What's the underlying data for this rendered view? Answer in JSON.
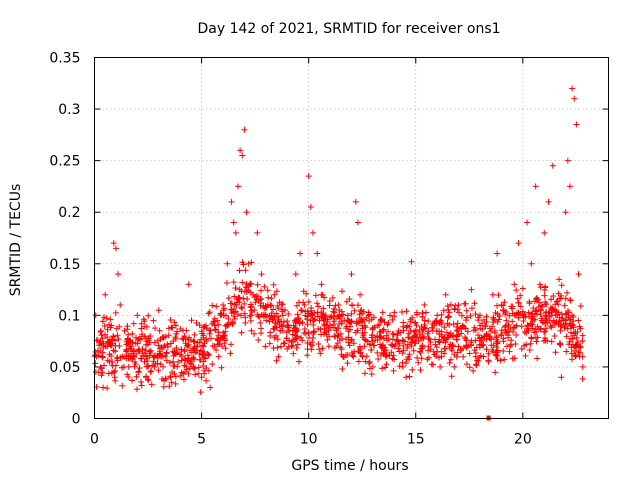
{
  "chart_data": {
    "type": "scatter",
    "title": "Day 142 of 2021, SRMTID for receiver ons1",
    "xlabel": "GPS time / hours",
    "ylabel": "SRMTID / TECUs",
    "xlim": [
      0,
      24
    ],
    "ylim": [
      0,
      0.35
    ],
    "xticks": [
      0,
      5,
      10,
      15,
      20
    ],
    "xtick_labels": [
      "0",
      "5",
      "10",
      "15",
      "20"
    ],
    "yticks": [
      0,
      0.05,
      0.1,
      0.15,
      0.2,
      0.25,
      0.3,
      0.35
    ],
    "ytick_labels": [
      "0",
      "0.05",
      "0.1",
      "0.15",
      "0.2",
      "0.25",
      "0.3",
      "0.35"
    ],
    "grid": true,
    "marker": "+",
    "color": "#ff0000",
    "series": [
      {
        "name": "SRMTID",
        "points": [
          [
            0.1,
            0.06
          ],
          [
            0.2,
            0.045
          ],
          [
            0.3,
            0.085
          ],
          [
            0.4,
            0.03
          ],
          [
            0.5,
            0.12
          ],
          [
            0.6,
            0.07
          ],
          [
            0.7,
            0.055
          ],
          [
            0.8,
            0.09
          ],
          [
            0.9,
            0.17
          ],
          [
            1.0,
            0.165
          ],
          [
            1.1,
            0.14
          ],
          [
            1.2,
            0.11
          ],
          [
            1.3,
            0.06
          ],
          [
            1.4,
            0.085
          ],
          [
            1.5,
            0.075
          ],
          [
            1.6,
            0.05
          ],
          [
            1.8,
            0.065
          ],
          [
            2.0,
            0.1
          ],
          [
            2.2,
            0.058
          ],
          [
            2.4,
            0.04
          ],
          [
            2.6,
            0.08
          ],
          [
            2.8,
            0.06
          ],
          [
            3.0,
            0.105
          ],
          [
            3.2,
            0.05
          ],
          [
            3.4,
            0.072
          ],
          [
            3.6,
            0.035
          ],
          [
            3.8,
            0.09
          ],
          [
            4.0,
            0.062
          ],
          [
            4.2,
            0.08
          ],
          [
            4.4,
            0.13
          ],
          [
            4.6,
            0.05
          ],
          [
            4.8,
            0.07
          ],
          [
            5.0,
            0.04
          ],
          [
            5.2,
            0.09
          ],
          [
            5.4,
            0.03
          ],
          [
            5.6,
            0.07
          ],
          [
            5.8,
            0.06
          ],
          [
            6.0,
            0.11
          ],
          [
            6.2,
            0.15
          ],
          [
            6.4,
            0.21
          ],
          [
            6.5,
            0.19
          ],
          [
            6.6,
            0.18
          ],
          [
            6.7,
            0.225
          ],
          [
            6.8,
            0.26
          ],
          [
            6.9,
            0.255
          ],
          [
            7.0,
            0.28
          ],
          [
            7.1,
            0.2
          ],
          [
            7.2,
            0.15
          ],
          [
            7.4,
            0.12
          ],
          [
            7.6,
            0.18
          ],
          [
            7.8,
            0.14
          ],
          [
            8.0,
            0.1
          ],
          [
            8.2,
            0.08
          ],
          [
            8.4,
            0.12
          ],
          [
            8.6,
            0.06
          ],
          [
            8.8,
            0.1
          ],
          [
            9.0,
            0.09
          ],
          [
            9.2,
            0.07
          ],
          [
            9.4,
            0.14
          ],
          [
            9.6,
            0.16
          ],
          [
            9.8,
            0.11
          ],
          [
            10.0,
            0.235
          ],
          [
            10.1,
            0.205
          ],
          [
            10.2,
            0.18
          ],
          [
            10.4,
            0.16
          ],
          [
            10.6,
            0.13
          ],
          [
            10.8,
            0.1
          ],
          [
            11.0,
            0.09
          ],
          [
            11.2,
            0.08
          ],
          [
            11.4,
            0.11
          ],
          [
            11.6,
            0.06
          ],
          [
            11.8,
            0.095
          ],
          [
            12.0,
            0.14
          ],
          [
            12.2,
            0.21
          ],
          [
            12.3,
            0.19
          ],
          [
            12.4,
            0.12
          ],
          [
            12.6,
            0.07
          ],
          [
            12.8,
            0.1
          ],
          [
            13.0,
            0.05
          ],
          [
            13.2,
            0.08
          ],
          [
            13.4,
            0.095
          ],
          [
            13.6,
            0.06
          ],
          [
            13.8,
            0.1
          ],
          [
            14.0,
            0.07
          ],
          [
            14.2,
            0.085
          ],
          [
            14.4,
            0.05
          ],
          [
            14.6,
            0.09
          ],
          [
            14.8,
            0.152
          ],
          [
            15.0,
            0.075
          ],
          [
            15.2,
            0.065
          ],
          [
            15.4,
            0.11
          ],
          [
            15.6,
            0.07
          ],
          [
            15.8,
            0.085
          ],
          [
            16.0,
            0.1
          ],
          [
            16.2,
            0.06
          ],
          [
            16.4,
            0.12
          ],
          [
            16.6,
            0.08
          ],
          [
            16.8,
            0.05
          ],
          [
            17.0,
            0.11
          ],
          [
            17.2,
            0.09
          ],
          [
            17.4,
            0.07
          ],
          [
            17.6,
            0.125
          ],
          [
            17.8,
            0.06
          ],
          [
            18.0,
            0.1
          ],
          [
            18.2,
            0.08
          ],
          [
            18.4,
            0.055
          ],
          [
            18.6,
            0.12
          ],
          [
            18.8,
            0.16
          ],
          [
            19.0,
            0.11
          ],
          [
            19.2,
            0.09
          ],
          [
            19.4,
            0.07
          ],
          [
            19.6,
            0.13
          ],
          [
            19.8,
            0.17
          ],
          [
            20.0,
            0.1
          ],
          [
            20.2,
            0.19
          ],
          [
            20.4,
            0.15
          ],
          [
            20.6,
            0.225
          ],
          [
            20.8,
            0.13
          ],
          [
            21.0,
            0.18
          ],
          [
            21.2,
            0.21
          ],
          [
            21.4,
            0.245
          ],
          [
            21.6,
            0.1
          ],
          [
            21.8,
            0.04
          ],
          [
            22.0,
            0.2
          ],
          [
            22.1,
            0.25
          ],
          [
            22.2,
            0.225
          ],
          [
            22.3,
            0.32
          ],
          [
            22.4,
            0.31
          ],
          [
            22.5,
            0.285
          ],
          [
            22.6,
            0.14
          ],
          [
            22.7,
            0.07
          ],
          [
            22.8,
            0.05
          ]
        ],
        "background_noise": {
          "description": "dense scatter of points",
          "baseline_profile": [
            [
              0,
              0.06
            ],
            [
              1,
              0.07
            ],
            [
              2,
              0.065
            ],
            [
              3,
              0.062
            ],
            [
              4,
              0.065
            ],
            [
              5,
              0.06
            ],
            [
              6,
              0.09
            ],
            [
              7,
              0.12
            ],
            [
              8,
              0.1
            ],
            [
              9,
              0.085
            ],
            [
              10,
              0.095
            ],
            [
              11,
              0.09
            ],
            [
              12,
              0.085
            ],
            [
              13,
              0.075
            ],
            [
              14,
              0.075
            ],
            [
              15,
              0.078
            ],
            [
              16,
              0.08
            ],
            [
              17,
              0.085
            ],
            [
              18,
              0.075
            ],
            [
              19,
              0.085
            ],
            [
              20,
              0.095
            ],
            [
              21,
              0.1
            ],
            [
              22,
              0.095
            ],
            [
              22.8,
              0.07
            ]
          ],
          "spread": 0.028,
          "count": 1500
        }
      }
    ],
    "special_marks": [
      {
        "x": 18.4,
        "y": 0.0,
        "shape": "square"
      }
    ]
  }
}
